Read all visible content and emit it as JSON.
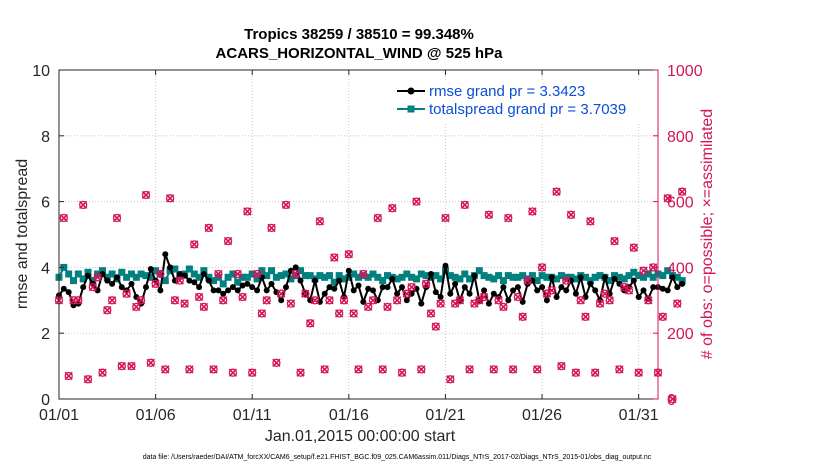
{
  "chart_data": {
    "type": "line",
    "title": "Tropics 38259 / 38510 = 99.348%",
    "subtitle": "ACARS_HORIZONTAL_WIND @ 525 hPa",
    "xlabel": "Jan.01,2015 00:00:00 start",
    "ylabel": "rmse and totalspread",
    "ylabel_right": "# of obs: o=possible; ×=assimilated",
    "xlim": [
      0,
      31
    ],
    "ylim": [
      0,
      10
    ],
    "ylim_right": [
      0,
      1000
    ],
    "x_ticks": [
      0,
      5,
      10,
      15,
      20,
      25,
      30
    ],
    "x_tick_labels": [
      "01/01",
      "01/06",
      "01/11",
      "01/16",
      "01/21",
      "01/26",
      "01/31"
    ],
    "y_ticks": [
      0,
      2,
      4,
      6,
      8,
      10
    ],
    "y_tick_labels": [
      "0",
      "2",
      "4",
      "6",
      "8",
      "10"
    ],
    "y_right_ticks": [
      0,
      200,
      400,
      600,
      800,
      1000
    ],
    "y_right_tick_labels": [
      "0",
      "200",
      "400",
      "600",
      "800",
      "1000"
    ],
    "legend": {
      "position": "top-right",
      "entries": [
        "rmse grand pr = 3.3423",
        "totalspread grand pr = 3.7039"
      ]
    },
    "colors": {
      "rmse": "#000000",
      "totalspread": "#00807f",
      "obs": "#d4145a",
      "legend_text": "#0a4fd6"
    },
    "series": [
      {
        "name": "rmse",
        "x_step": 0.25,
        "values": [
          3.15,
          3.35,
          3.25,
          2.85,
          2.9,
          3.4,
          3.75,
          3.5,
          3.3,
          3.8,
          3.6,
          3.5,
          3.7,
          3.4,
          3.3,
          3.5,
          3.1,
          2.9,
          3.4,
          3.95,
          3.6,
          3.3,
          4.4,
          4.0,
          3.6,
          3.8,
          3.75,
          3.6,
          3.55,
          3.4,
          3.8,
          3.6,
          3.3,
          3.3,
          3.2,
          3.3,
          3.4,
          3.3,
          3.45,
          3.5,
          3.4,
          3.3,
          3.7,
          3.3,
          3.5,
          3.25,
          3.0,
          3.4,
          3.9,
          4.0,
          3.6,
          3.2,
          3.0,
          3.6,
          2.95,
          3.2,
          3.4,
          3.35,
          3.6,
          3.1,
          3.9,
          3.3,
          3.45,
          2.95,
          3.35,
          3.3,
          3.0,
          3.4,
          3.4,
          3.65,
          3.2,
          3.4,
          3.0,
          3.2,
          3.35,
          2.9,
          3.4,
          3.8,
          3.25,
          3.1,
          4.05,
          3.2,
          3.5,
          3.0,
          3.4,
          3.2,
          3.75,
          3.0,
          3.3,
          2.9,
          3.2,
          3.1,
          3.4,
          3.0,
          3.3,
          3.4,
          2.95,
          3.5,
          3.6,
          3.3,
          3.4,
          3.0,
          3.7,
          3.1,
          3.4,
          3.3,
          3.6,
          3.2,
          3.7,
          3.1,
          3.5,
          3.3,
          3.0,
          3.7,
          3.2,
          3.65,
          3.5,
          3.3,
          3.4,
          3.6,
          3.1,
          3.3,
          3.05,
          3.4,
          3.4,
          3.35,
          3.3,
          3.7,
          3.4,
          3.5
        ]
      },
      {
        "name": "totalspread",
        "x_step": 0.25,
        "values": [
          3.7,
          4.0,
          3.8,
          3.6,
          3.8,
          3.65,
          3.85,
          3.6,
          3.8,
          3.9,
          3.7,
          3.8,
          3.65,
          3.85,
          3.7,
          3.8,
          3.7,
          3.8,
          3.75,
          3.7,
          3.9,
          3.8,
          3.6,
          3.9,
          3.95,
          3.75,
          3.8,
          3.95,
          3.8,
          3.7,
          3.9,
          3.7,
          3.6,
          3.7,
          3.5,
          3.7,
          3.8,
          3.55,
          3.7,
          3.7,
          3.8,
          3.65,
          3.9,
          3.75,
          3.9,
          3.7,
          3.75,
          3.8,
          3.65,
          3.75,
          3.9,
          3.75,
          3.75,
          3.65,
          3.75,
          3.7,
          3.75,
          3.55,
          3.75,
          3.65,
          3.7,
          3.8,
          3.7,
          3.75,
          3.7,
          3.8,
          3.7,
          3.6,
          3.75,
          3.7,
          3.65,
          3.7,
          3.8,
          3.7,
          3.65,
          3.8,
          3.75,
          3.7,
          3.75,
          3.65,
          3.9,
          3.75,
          3.7,
          3.65,
          3.8,
          3.65,
          3.75,
          3.9,
          3.75,
          3.7,
          3.65,
          3.75,
          3.6,
          3.75,
          3.7,
          3.7,
          3.75,
          3.65,
          3.75,
          3.6,
          3.75,
          3.7,
          3.7,
          3.65,
          3.75,
          3.7,
          3.7,
          3.65,
          3.75,
          3.7,
          3.6,
          3.7,
          3.75,
          3.7,
          3.6,
          3.75,
          3.7,
          3.65,
          3.75,
          3.85,
          3.75,
          3.7,
          3.8,
          3.7,
          3.8,
          3.75,
          3.9,
          3.75,
          3.7,
          3.6
        ]
      },
      {
        "name": "obs",
        "axis": "right",
        "x_step": 0.25,
        "values": [
          300,
          550,
          70,
          300,
          300,
          590,
          60,
          340,
          370,
          80,
          270,
          300,
          550,
          100,
          320,
          100,
          280,
          300,
          620,
          110,
          350,
          380,
          90,
          610,
          300,
          360,
          290,
          90,
          470,
          310,
          280,
          520,
          90,
          380,
          300,
          480,
          80,
          380,
          310,
          570,
          80,
          380,
          260,
          300,
          520,
          110,
          320,
          590,
          290,
          380,
          80,
          320,
          230,
          300,
          540,
          90,
          300,
          430,
          260,
          300,
          440,
          260,
          90,
          380,
          280,
          300,
          550,
          90,
          280,
          580,
          300,
          80,
          320,
          340,
          600,
          90,
          350,
          260,
          220,
          290,
          550,
          60,
          290,
          300,
          590,
          90,
          290,
          300,
          310,
          560,
          90,
          300,
          280,
          550,
          90,
          310,
          250,
          360,
          570,
          90,
          400,
          320,
          330,
          630,
          100,
          360,
          560,
          80,
          300,
          250,
          540,
          80,
          290,
          320,
          300,
          480,
          90,
          340,
          330,
          460,
          80,
          390,
          300,
          400,
          80,
          250,
          610,
          0,
          290,
          630
        ]
      }
    ],
    "footer": "data file: /Users/raeder/DAI/ATM_forcXX/CAM6_setup/f.e21.FHIST_BGC.f09_025.CAM6assim.011/Diags_NTrS_2017-02/Diags_NTrS_2015-01/obs_diag_output.nc"
  }
}
